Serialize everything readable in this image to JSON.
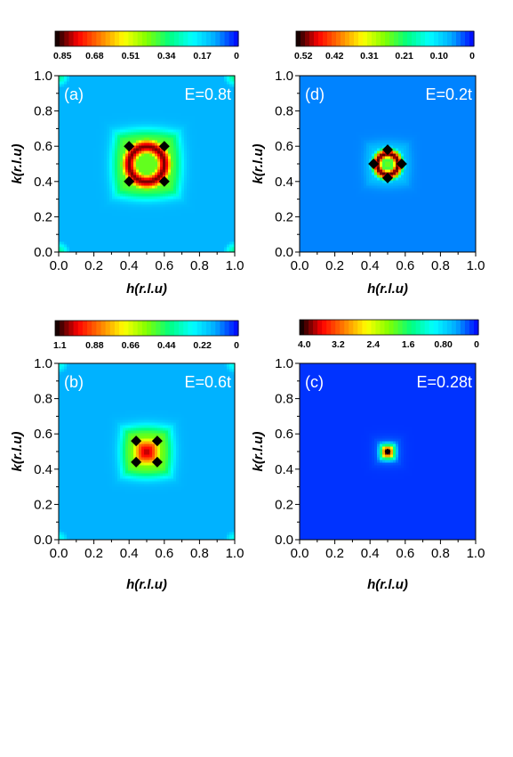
{
  "colors": {
    "colormap": [
      "#0000ff",
      "#00aaff",
      "#00ffff",
      "#00ff80",
      "#80ff00",
      "#ffff00",
      "#ff8000",
      "#ff0000",
      "#000000"
    ],
    "background_level": "#1f50ff",
    "marker": "#000000",
    "panel_label": "#ffffff"
  },
  "chart_data": [
    {
      "type": "heatmap",
      "panel": "(a)",
      "energy_label": "E=0.8t",
      "xlabel": "h(r.l.u)",
      "ylabel": "k(r.l.u)",
      "xlim": [
        0,
        1
      ],
      "ylim": [
        0,
        1
      ],
      "xticks": [
        "0.0",
        "0.2",
        "0.4",
        "0.6",
        "0.8",
        "1.0"
      ],
      "yticks": [
        "0.0",
        "0.2",
        "0.4",
        "0.6",
        "0.8",
        "1.0"
      ],
      "colorbar": {
        "vmin": 0,
        "vmax": 0.85,
        "ticks": [
          "0.85",
          "0.68",
          "0.51",
          "0.34",
          "0.17",
          "0"
        ]
      },
      "features": {
        "ring": {
          "center": [
            0.5,
            0.5
          ],
          "radius": 0.1,
          "peak_value": 0.8,
          "inner_value": 0.4
        },
        "plateau": {
          "half_width": 0.19,
          "value": 0.4
        },
        "background_value": 0.12,
        "corner_value": 0.3
      },
      "markers": [
        [
          0.4,
          0.4
        ],
        [
          0.6,
          0.4
        ],
        [
          0.4,
          0.6
        ],
        [
          0.6,
          0.6
        ]
      ]
    },
    {
      "type": "heatmap",
      "panel": "(d)",
      "energy_label": "E=0.2t",
      "xlabel": "h(r.l.u)",
      "ylabel": "k(r.l.u)",
      "xlim": [
        0,
        1
      ],
      "ylim": [
        0,
        1
      ],
      "xticks": [
        "0.0",
        "0.2",
        "0.4",
        "0.6",
        "0.8",
        "1.0"
      ],
      "yticks": [
        "0.0",
        "0.2",
        "0.4",
        "0.6",
        "0.8",
        "1.0"
      ],
      "colorbar": {
        "vmin": 0,
        "vmax": 0.52,
        "ticks": [
          "0.52",
          "0.42",
          "0.31",
          "0.21",
          "0.10",
          "0"
        ]
      },
      "features": {
        "ring": {
          "center": [
            0.5,
            0.5
          ],
          "radius": 0.06,
          "peak_value": 0.5,
          "inner_value": 0.25
        },
        "plateau": {
          "half_width": 0.11,
          "value": 0.1
        },
        "background_value": 0.05,
        "corner_value": 0.05
      },
      "markers": [
        [
          0.42,
          0.5
        ],
        [
          0.58,
          0.5
        ],
        [
          0.5,
          0.42
        ],
        [
          0.5,
          0.58
        ]
      ]
    },
    {
      "type": "heatmap",
      "panel": "(b)",
      "energy_label": "E=0.6t",
      "xlabel": "h(r.l.u)",
      "ylabel": "k(r.l.u)",
      "xlim": [
        0,
        1
      ],
      "ylim": [
        0,
        1
      ],
      "xticks": [
        "0.0",
        "0.2",
        "0.4",
        "0.6",
        "0.8",
        "1.0"
      ],
      "yticks": [
        "0.0",
        "0.2",
        "0.4",
        "0.6",
        "0.8",
        "1.0"
      ],
      "colorbar": {
        "vmin": 0,
        "vmax": 1.1,
        "ticks": [
          "1.1",
          "0.88",
          "0.66",
          "0.44",
          "0.22",
          "0"
        ]
      },
      "features": {
        "ring": {
          "center": [
            0.5,
            0.5
          ],
          "radius": 0.0,
          "peak_value": 1.0,
          "inner_value": 1.0
        },
        "plateau": {
          "half_width": 0.14,
          "value": 0.55
        },
        "background_value": 0.15,
        "corner_value": 0.3
      },
      "markers": [
        [
          0.44,
          0.44
        ],
        [
          0.56,
          0.44
        ],
        [
          0.44,
          0.56
        ],
        [
          0.56,
          0.56
        ]
      ]
    },
    {
      "type": "heatmap",
      "panel": "(c)",
      "energy_label": "E=0.28t",
      "xlabel": "h(r.l.u)",
      "ylabel": "k(r.l.u)",
      "xlim": [
        0,
        1
      ],
      "ylim": [
        0,
        1
      ],
      "xticks": [
        "0.0",
        "0.2",
        "0.4",
        "0.6",
        "0.8",
        "1.0"
      ],
      "yticks": [
        "0.0",
        "0.2",
        "0.4",
        "0.6",
        "0.8",
        "1.0"
      ],
      "colorbar": {
        "vmin": 0,
        "vmax": 4.0,
        "ticks": [
          "4.0",
          "3.2",
          "2.4",
          "1.6",
          "0.80",
          "0"
        ]
      },
      "features": {
        "ring": {
          "center": [
            0.5,
            0.5
          ],
          "radius": 0.0,
          "peak_value": 4.0,
          "inner_value": 4.0
        },
        "plateau": {
          "half_width": 0.05,
          "value": 0.6
        },
        "background_value": 0.15,
        "corner_value": 0.15
      },
      "markers": [
        [
          0.5,
          0.5
        ]
      ]
    }
  ]
}
